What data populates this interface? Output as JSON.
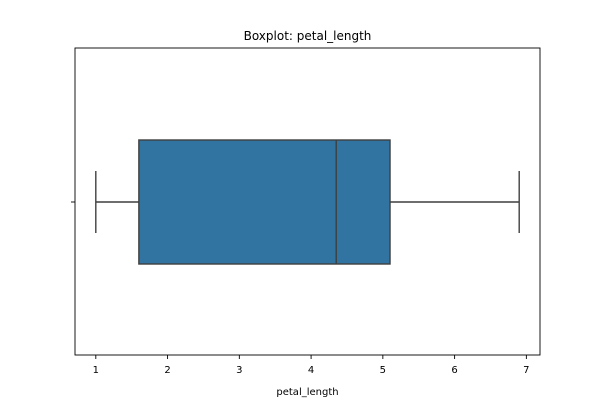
{
  "chart_data": {
    "type": "box",
    "title": "Boxplot: petal_length",
    "xlabel": "petal_length",
    "ylabel": "",
    "orientation": "horizontal",
    "xlim": [
      0.71,
      7.19
    ],
    "xticks": [
      1,
      2,
      3,
      4,
      5,
      6,
      7
    ],
    "grid": false,
    "box": {
      "min": 1.0,
      "q1": 1.6,
      "median": 4.35,
      "q3": 5.1,
      "max": 6.9,
      "color": "#3274a1",
      "line_color": "#3f3f3f"
    }
  }
}
